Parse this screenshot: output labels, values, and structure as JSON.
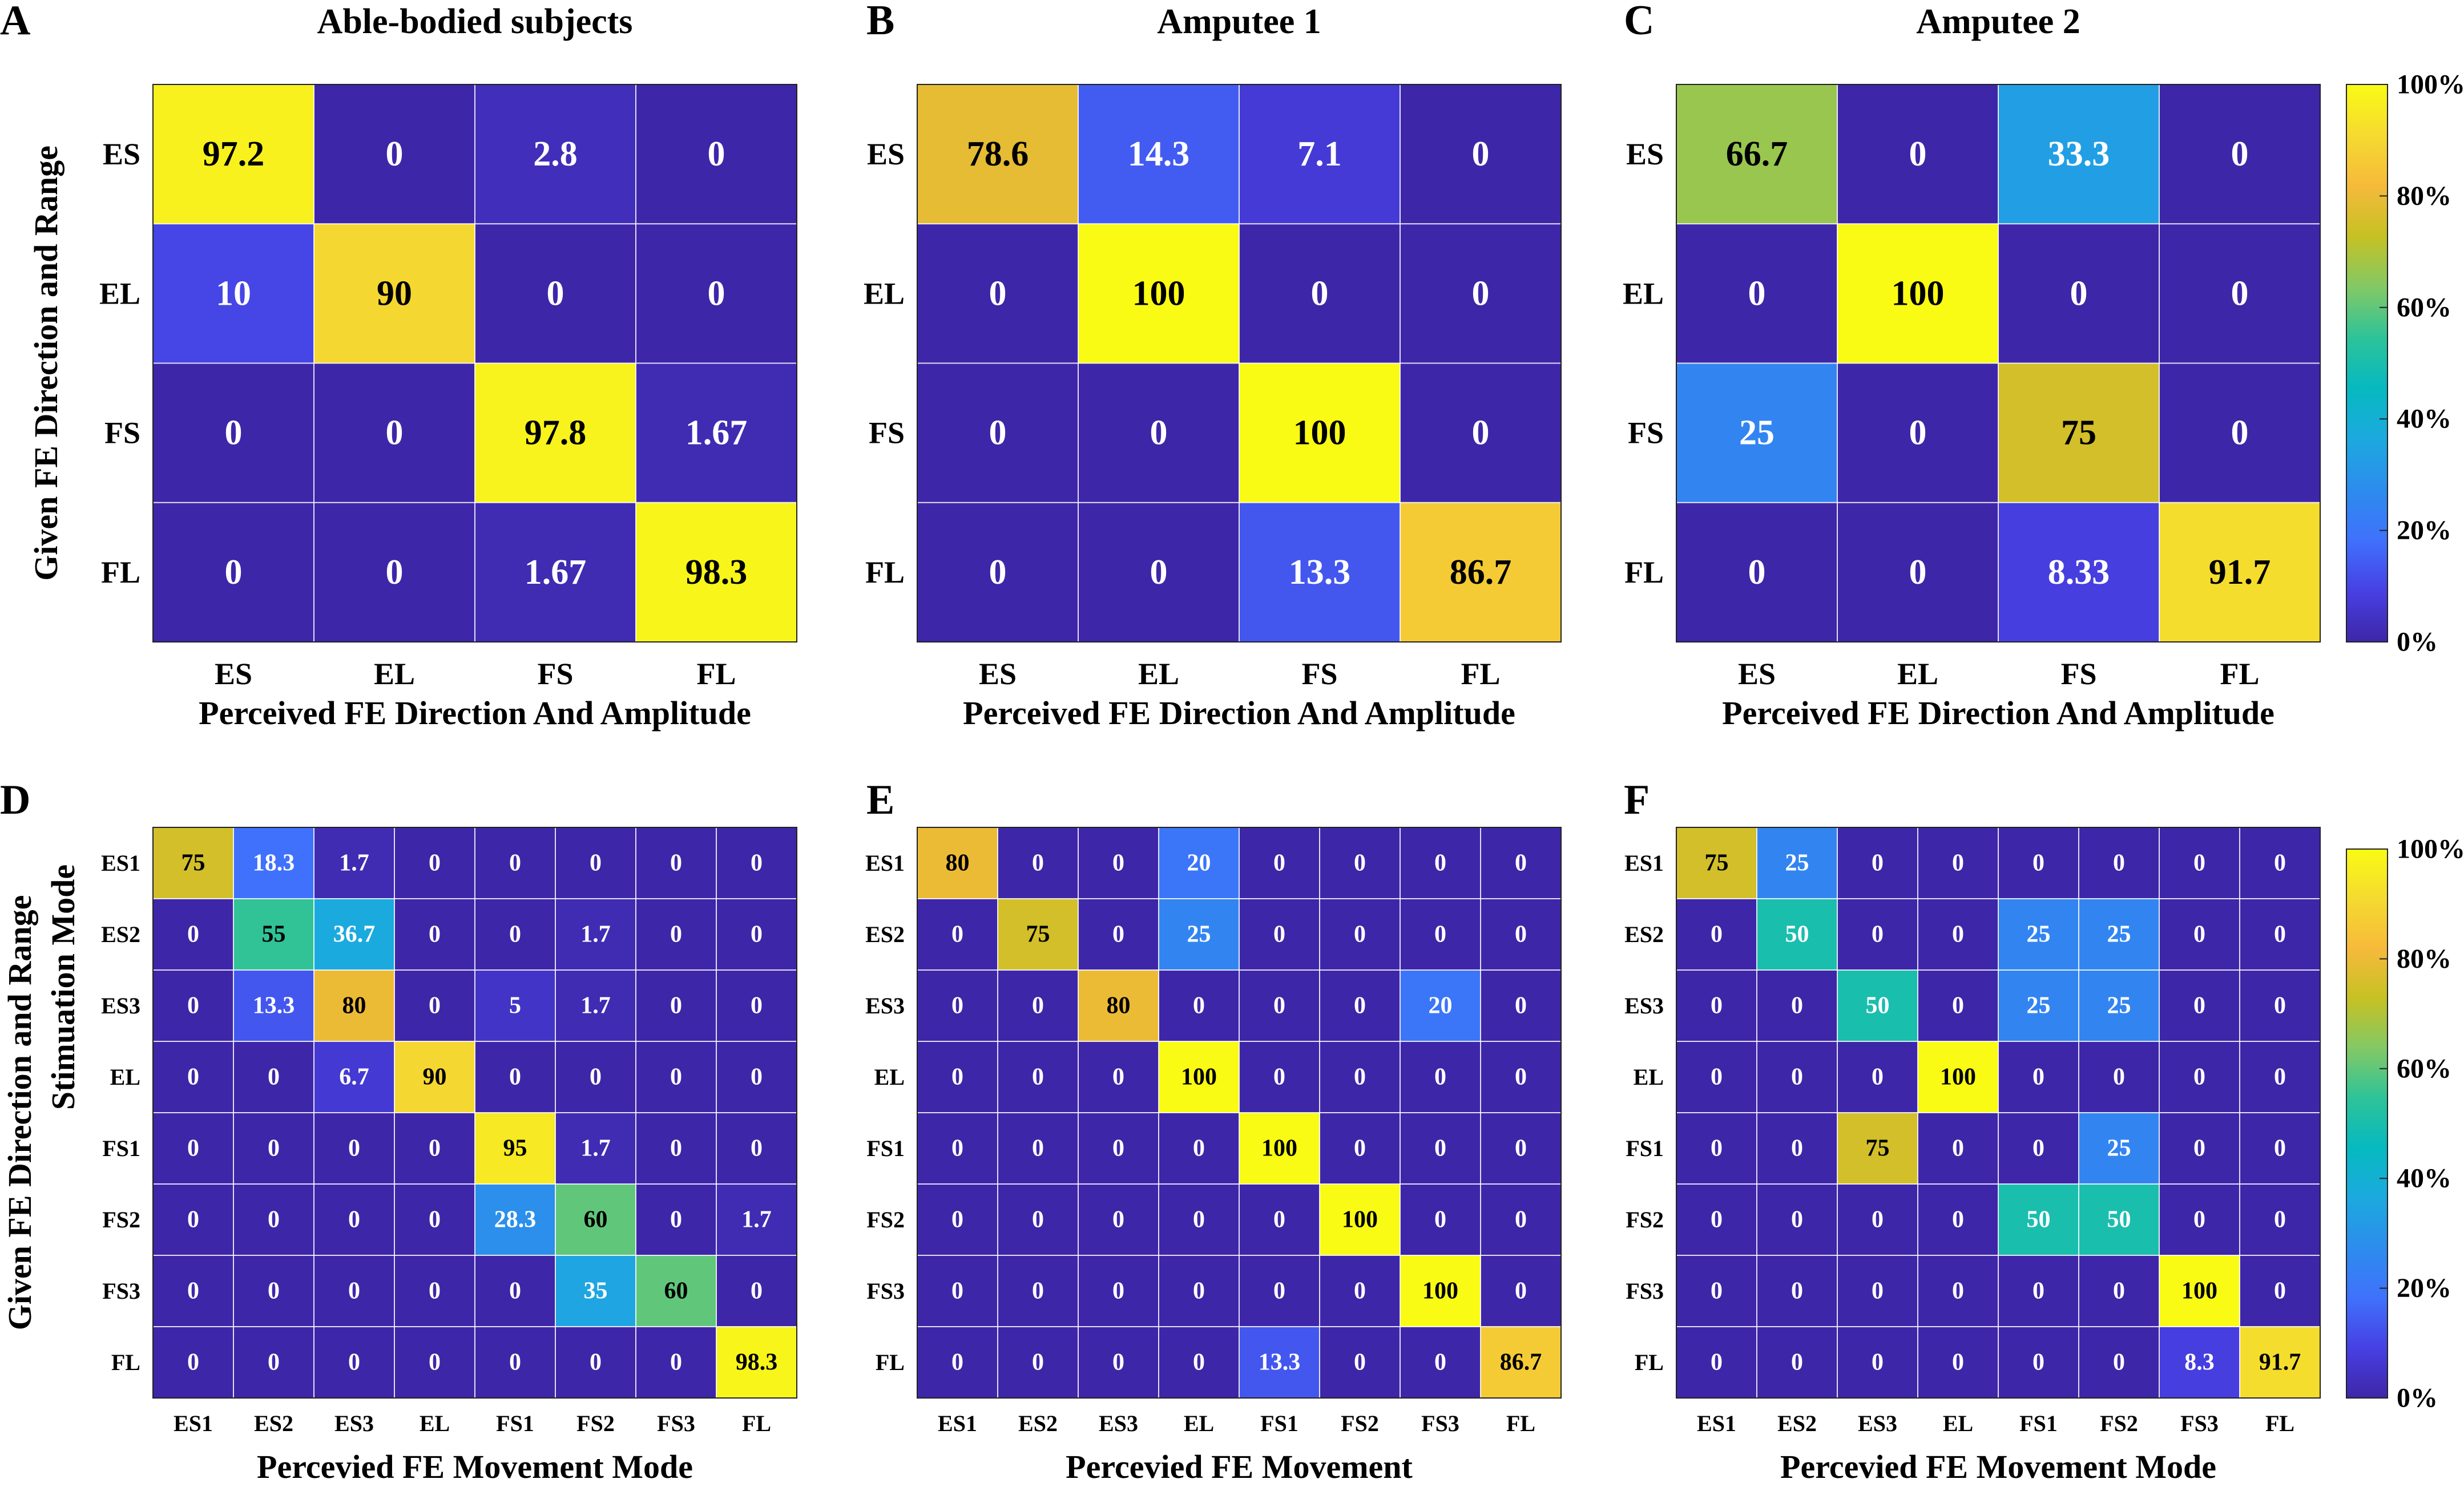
{
  "figure": {
    "colorbar_ticks": [
      "100%",
      "80%",
      "60%",
      "40%",
      "20%",
      "0%"
    ],
    "colormap": [
      "#3e26a8",
      "#4740e3",
      "#3f71fc",
      "#2d8ced",
      "#1ca9df",
      "#06b9c0",
      "#2dc399",
      "#82c965",
      "#c6c124",
      "#f6ba3b",
      "#f5da30",
      "#f9fb15"
    ]
  },
  "chart_data": [
    {
      "type": "heatmap",
      "panel_letter": "A",
      "title": "Able-bodied subjects",
      "xlabel": "Perceived FE Direction And Amplitude",
      "ylabel": "Given FE Direction and Range",
      "ylabel2": "",
      "row_labels": [
        "ES",
        "EL",
        "FS",
        "FL"
      ],
      "col_labels": [
        "ES",
        "EL",
        "FS",
        "FL"
      ],
      "values": [
        [
          97.2,
          0,
          2.8,
          0
        ],
        [
          10,
          90,
          0,
          0
        ],
        [
          0,
          0,
          97.8,
          1.67
        ],
        [
          0,
          0,
          1.67,
          98.3
        ]
      ],
      "cell_labels": [
        [
          "97.2",
          "0",
          "2.8",
          "0"
        ],
        [
          "10",
          "90",
          "0",
          "0"
        ],
        [
          "0",
          "0",
          "97.8",
          "1.67"
        ],
        [
          "0",
          "0",
          "1.67",
          "98.3"
        ]
      ],
      "zlim": [
        0,
        100
      ]
    },
    {
      "type": "heatmap",
      "panel_letter": "B",
      "title": "Amputee 1",
      "xlabel": "Perceived FE Direction And Amplitude",
      "ylabel": "",
      "ylabel2": "",
      "row_labels": [
        "ES",
        "EL",
        "FS",
        "FL"
      ],
      "col_labels": [
        "ES",
        "EL",
        "FS",
        "FL"
      ],
      "values": [
        [
          78.6,
          14.3,
          7.1,
          0
        ],
        [
          0,
          100,
          0,
          0
        ],
        [
          0,
          0,
          100,
          0
        ],
        [
          0,
          0,
          13.3,
          86.7
        ]
      ],
      "cell_labels": [
        [
          "78.6",
          "14.3",
          "7.1",
          "0"
        ],
        [
          "0",
          "100",
          "0",
          "0"
        ],
        [
          "0",
          "0",
          "100",
          "0"
        ],
        [
          "0",
          "0",
          "13.3",
          "86.7"
        ]
      ],
      "zlim": [
        0,
        100
      ]
    },
    {
      "type": "heatmap",
      "panel_letter": "C",
      "title": "Amputee 2",
      "xlabel": "Perceived FE Direction And Amplitude",
      "ylabel": "",
      "ylabel2": "",
      "row_labels": [
        "ES",
        "EL",
        "FS",
        "FL"
      ],
      "col_labels": [
        "ES",
        "EL",
        "FS",
        "FL"
      ],
      "values": [
        [
          66.7,
          0,
          33.3,
          0
        ],
        [
          0,
          100,
          0,
          0
        ],
        [
          25,
          0,
          75,
          0
        ],
        [
          0,
          0,
          8.33,
          91.7
        ]
      ],
      "cell_labels": [
        [
          "66.7",
          "0",
          "33.3",
          "0"
        ],
        [
          "0",
          "100",
          "0",
          "0"
        ],
        [
          "25",
          "0",
          "75",
          "0"
        ],
        [
          "0",
          "0",
          "8.33",
          "91.7"
        ]
      ],
      "zlim": [
        0,
        100
      ]
    },
    {
      "type": "heatmap",
      "panel_letter": "D",
      "title": "",
      "xlabel": "Percevied FE Movement Mode",
      "ylabel": "Given FE Direction and Range",
      "ylabel2": "Stimuation Mode",
      "row_labels": [
        "ES1",
        "ES2",
        "ES3",
        "EL",
        "FS1",
        "FS2",
        "FS3",
        "FL"
      ],
      "col_labels": [
        "ES1",
        "ES2",
        "ES3",
        "EL",
        "FS1",
        "FS2",
        "FS3",
        "FL"
      ],
      "values": [
        [
          75,
          18.3,
          1.7,
          0,
          0,
          0,
          0,
          0
        ],
        [
          0,
          55,
          36.7,
          0,
          0,
          1.7,
          0,
          0
        ],
        [
          0,
          13.3,
          80,
          0,
          5,
          1.7,
          0,
          0
        ],
        [
          0,
          0,
          6.7,
          90,
          0,
          0,
          0,
          0
        ],
        [
          0,
          0,
          0,
          0,
          95,
          1.7,
          0,
          0
        ],
        [
          0,
          0,
          0,
          0,
          28.3,
          60,
          0,
          1.7
        ],
        [
          0,
          0,
          0,
          0,
          0,
          35,
          60,
          0
        ],
        [
          0,
          0,
          0,
          0,
          0,
          0,
          0,
          98.3
        ]
      ],
      "cell_labels": [
        [
          "75",
          "18.3",
          "1.7",
          "0",
          "0",
          "0",
          "0",
          "0"
        ],
        [
          "0",
          "55",
          "36.7",
          "0",
          "0",
          "1.7",
          "0",
          "0"
        ],
        [
          "0",
          "13.3",
          "80",
          "0",
          "5",
          "1.7",
          "0",
          "0"
        ],
        [
          "0",
          "0",
          "6.7",
          "90",
          "0",
          "0",
          "0",
          "0"
        ],
        [
          "0",
          "0",
          "0",
          "0",
          "95",
          "1.7",
          "0",
          "0"
        ],
        [
          "0",
          "0",
          "0",
          "0",
          "28.3",
          "60",
          "0",
          "1.7"
        ],
        [
          "0",
          "0",
          "0",
          "0",
          "0",
          "35",
          "60",
          "0"
        ],
        [
          "0",
          "0",
          "0",
          "0",
          "0",
          "0",
          "0",
          "98.3"
        ]
      ],
      "zlim": [
        0,
        100
      ]
    },
    {
      "type": "heatmap",
      "panel_letter": "E",
      "title": "",
      "xlabel": "Percevied FE Movement",
      "ylabel": "",
      "ylabel2": "",
      "row_labels": [
        "ES1",
        "ES2",
        "ES3",
        "EL",
        "FS1",
        "FS2",
        "FS3",
        "FL"
      ],
      "col_labels": [
        "ES1",
        "ES2",
        "ES3",
        "EL",
        "FS1",
        "FS2",
        "FS3",
        "FL"
      ],
      "values": [
        [
          80,
          0,
          0,
          20,
          0,
          0,
          0,
          0
        ],
        [
          0,
          75,
          0,
          25,
          0,
          0,
          0,
          0
        ],
        [
          0,
          0,
          80,
          0,
          0,
          0,
          20,
          0
        ],
        [
          0,
          0,
          0,
          100,
          0,
          0,
          0,
          0
        ],
        [
          0,
          0,
          0,
          0,
          100,
          0,
          0,
          0
        ],
        [
          0,
          0,
          0,
          0,
          0,
          100,
          0,
          0
        ],
        [
          0,
          0,
          0,
          0,
          0,
          0,
          100,
          0
        ],
        [
          0,
          0,
          0,
          0,
          13.3,
          0,
          0,
          86.7
        ]
      ],
      "cell_labels": [
        [
          "80",
          "0",
          "0",
          "20",
          "0",
          "0",
          "0",
          "0"
        ],
        [
          "0",
          "75",
          "0",
          "25",
          "0",
          "0",
          "0",
          "0"
        ],
        [
          "0",
          "0",
          "80",
          "0",
          "0",
          "0",
          "20",
          "0"
        ],
        [
          "0",
          "0",
          "0",
          "100",
          "0",
          "0",
          "0",
          "0"
        ],
        [
          "0",
          "0",
          "0",
          "0",
          "100",
          "0",
          "0",
          "0"
        ],
        [
          "0",
          "0",
          "0",
          "0",
          "0",
          "100",
          "0",
          "0"
        ],
        [
          "0",
          "0",
          "0",
          "0",
          "0",
          "0",
          "100",
          "0"
        ],
        [
          "0",
          "0",
          "0",
          "0",
          "13.3",
          "0",
          "0",
          "86.7"
        ]
      ],
      "zlim": [
        0,
        100
      ]
    },
    {
      "type": "heatmap",
      "panel_letter": "F",
      "title": "",
      "xlabel": "Percevied FE Movement Mode",
      "ylabel": "",
      "ylabel2": "",
      "row_labels": [
        "ES1",
        "ES2",
        "ES3",
        "EL",
        "FS1",
        "FS2",
        "FS3",
        "FL"
      ],
      "col_labels": [
        "ES1",
        "ES2",
        "ES3",
        "EL",
        "FS1",
        "FS2",
        "FS3",
        "FL"
      ],
      "values": [
        [
          75,
          25,
          0,
          0,
          0,
          0,
          0,
          0
        ],
        [
          0,
          50,
          0,
          0,
          25,
          25,
          0,
          0
        ],
        [
          0,
          0,
          50,
          0,
          25,
          25,
          0,
          0
        ],
        [
          0,
          0,
          0,
          100,
          0,
          0,
          0,
          0
        ],
        [
          0,
          0,
          75,
          0,
          0,
          25,
          0,
          0
        ],
        [
          0,
          0,
          0,
          0,
          50,
          50,
          0,
          0
        ],
        [
          0,
          0,
          0,
          0,
          0,
          0,
          100,
          0
        ],
        [
          0,
          0,
          0,
          0,
          0,
          0,
          8.3,
          91.7
        ]
      ],
      "cell_labels": [
        [
          "75",
          "25",
          "0",
          "0",
          "0",
          "0",
          "0",
          "0"
        ],
        [
          "0",
          "50",
          "0",
          "0",
          "25",
          "25",
          "0",
          "0"
        ],
        [
          "0",
          "0",
          "50",
          "0",
          "25",
          "25",
          "0",
          "0"
        ],
        [
          "0",
          "0",
          "0",
          "100",
          "0",
          "0",
          "0",
          "0"
        ],
        [
          "0",
          "0",
          "75",
          "0",
          "0",
          "25",
          "0",
          "0"
        ],
        [
          "0",
          "0",
          "0",
          "0",
          "50",
          "50",
          "0",
          "0"
        ],
        [
          "0",
          "0",
          "0",
          "0",
          "0",
          "0",
          "100",
          "0"
        ],
        [
          "0",
          "0",
          "0",
          "0",
          "0",
          "0",
          "8.3",
          "91.7"
        ]
      ],
      "zlim": [
        0,
        100
      ]
    }
  ]
}
